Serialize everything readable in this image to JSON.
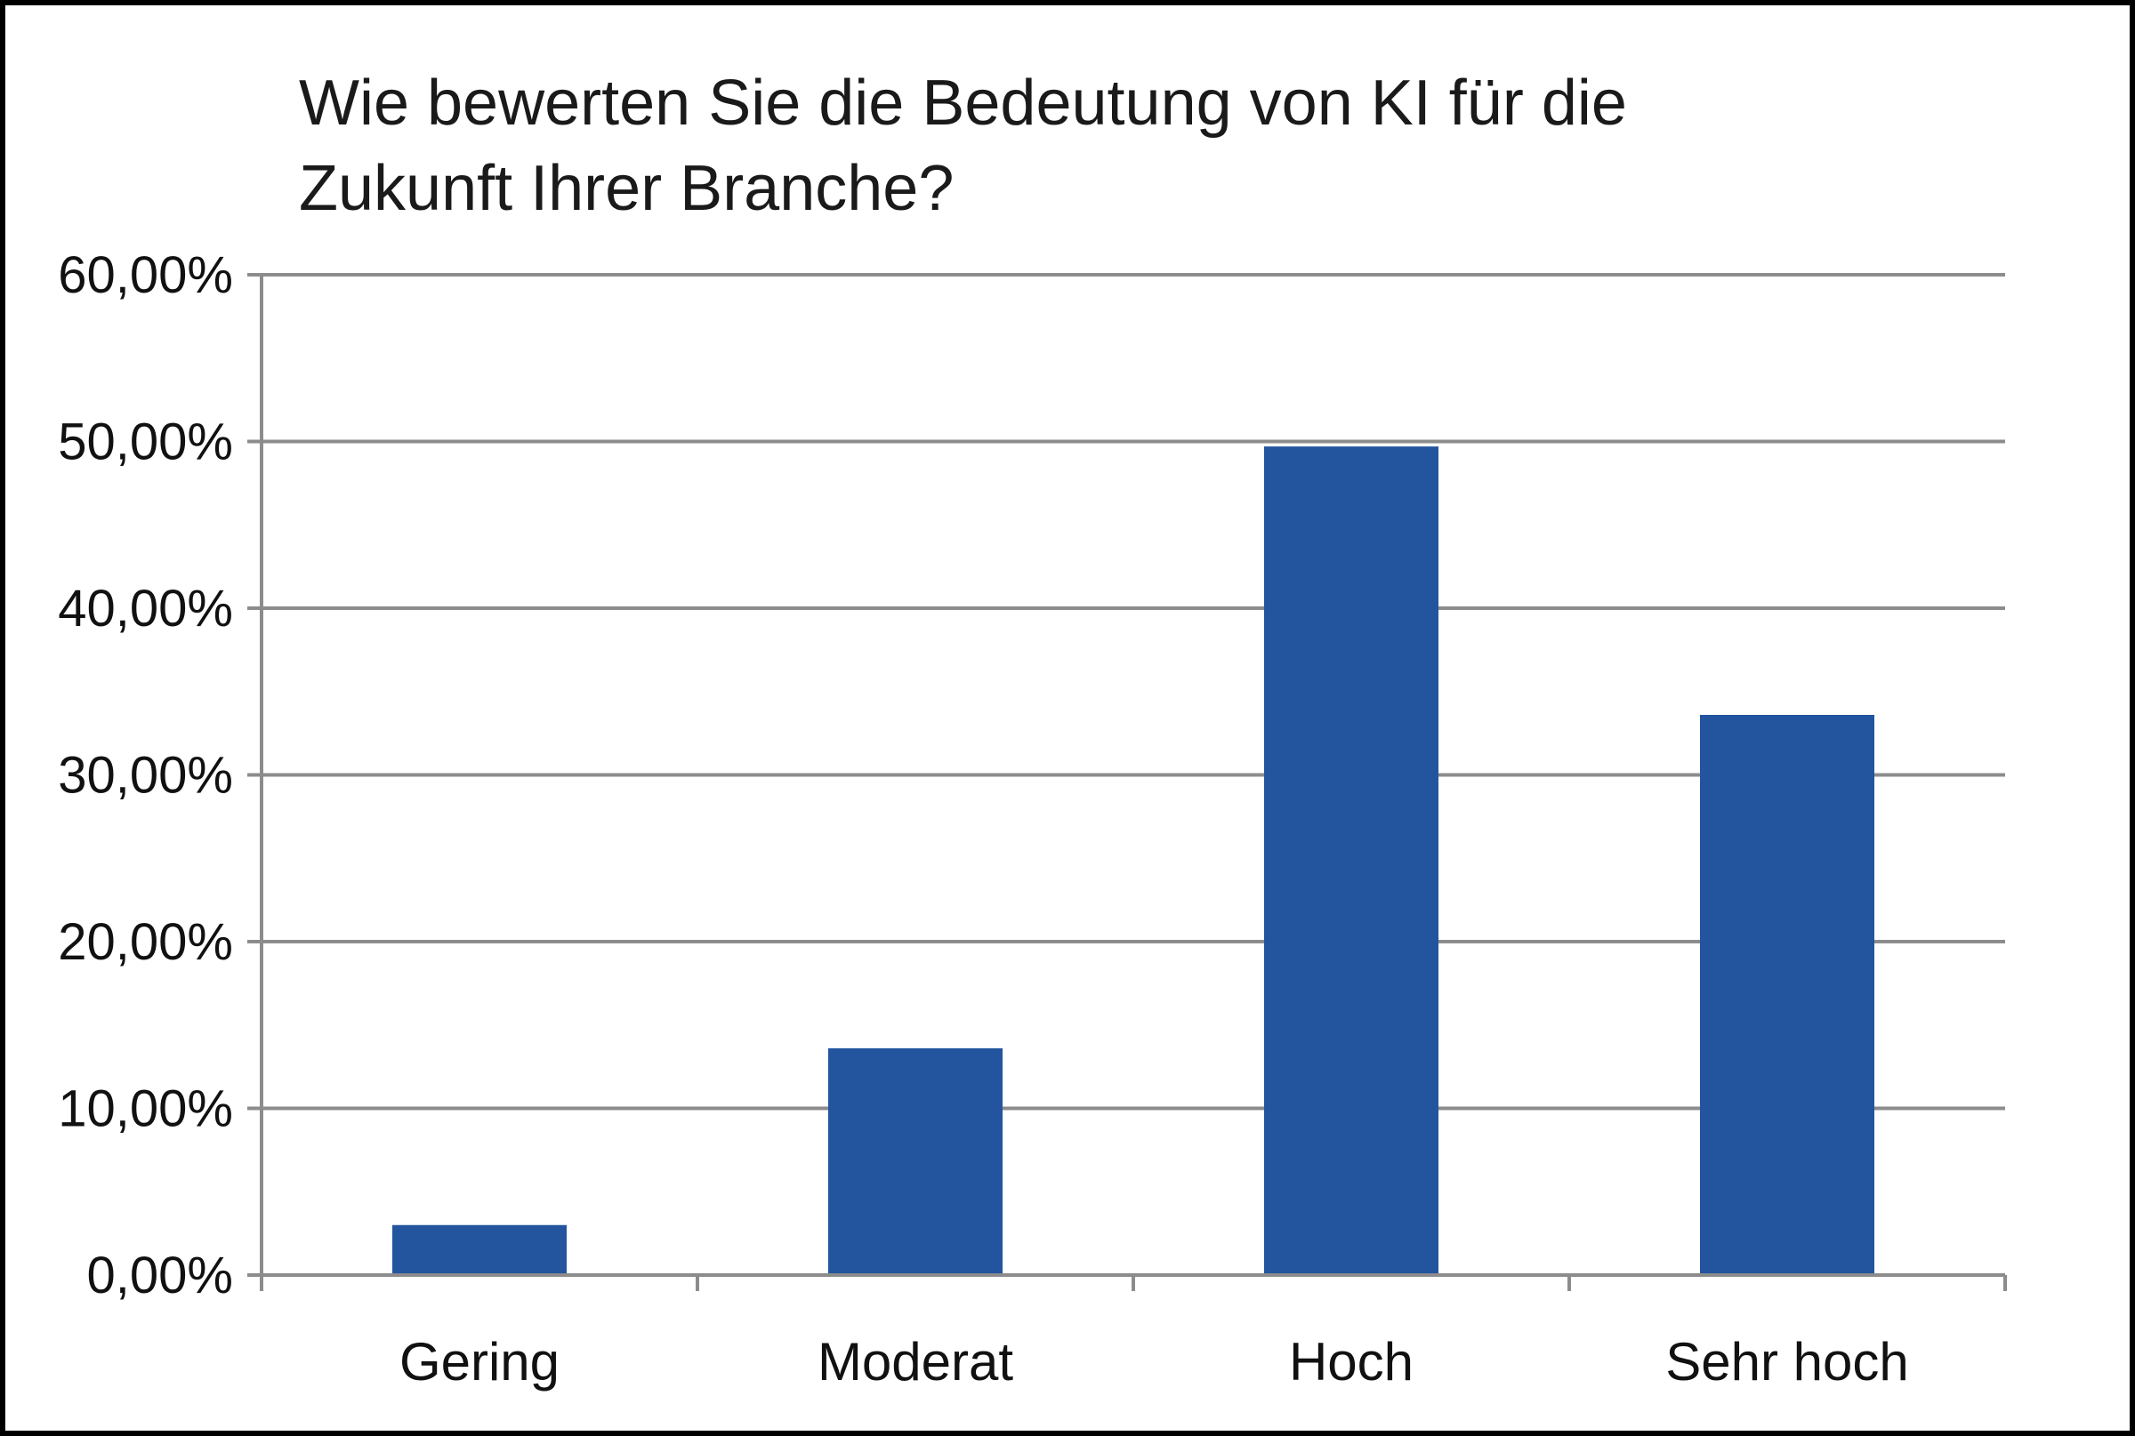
{
  "chart_data": {
    "type": "bar",
    "title": "Wie bewerten Sie die Bedeutung von KI für die Zukunft Ihrer Branche?",
    "categories": [
      "Gering",
      "Moderat",
      "Hoch",
      "Sehr hoch"
    ],
    "values": [
      3.0,
      13.6,
      49.7,
      33.6
    ],
    "value_unit": "%",
    "ylim": [
      0,
      60
    ],
    "yticks": [
      0,
      10,
      20,
      30,
      40,
      50,
      60
    ],
    "ytick_labels": [
      "0,00%",
      "10,00%",
      "20,00%",
      "30,00%",
      "40,00%",
      "50,00%",
      "60,00%"
    ],
    "xlabel": "",
    "ylabel": "",
    "grid": true,
    "legend": "none",
    "bar_color": "#23549e",
    "grid_color": "#8c8c8c"
  }
}
